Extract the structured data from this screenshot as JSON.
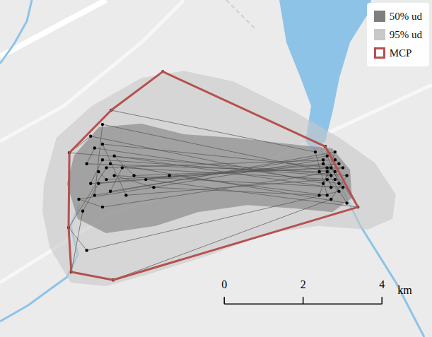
{
  "chart_data": {
    "type": "scatter",
    "xlim": [
      0,
      10.96
    ],
    "ylim": [
      0,
      8.56
    ],
    "tick_labels": false,
    "legend": "top-right",
    "series": [
      {
        "name": "50% ud",
        "type": "area",
        "color": "#7f7f7f",
        "points": [
          [
            1.88,
            4.61
          ],
          [
            2.51,
            5.33
          ],
          [
            3.59,
            5.42
          ],
          [
            4.66,
            5.15
          ],
          [
            5.92,
            5.06
          ],
          [
            7.53,
            4.88
          ],
          [
            8.43,
            4.79
          ],
          [
            8.88,
            4.25
          ],
          [
            8.93,
            3.53
          ],
          [
            8.43,
            3.17
          ],
          [
            7.53,
            3.26
          ],
          [
            6.28,
            3.35
          ],
          [
            5.02,
            3.17
          ],
          [
            3.95,
            2.82
          ],
          [
            2.69,
            2.64
          ],
          [
            1.97,
            3.0
          ],
          [
            1.7,
            3.89
          ]
        ]
      },
      {
        "name": "95% ud",
        "type": "area",
        "color": "#c8c8c8",
        "points": [
          [
            1.11,
            3.89
          ],
          [
            1.43,
            5.06
          ],
          [
            2.33,
            5.87
          ],
          [
            3.59,
            6.58
          ],
          [
            4.66,
            6.76
          ],
          [
            5.92,
            6.49
          ],
          [
            7.53,
            5.69
          ],
          [
            8.61,
            5.06
          ],
          [
            9.51,
            4.43
          ],
          [
            10.04,
            3.62
          ],
          [
            9.96,
            3.0
          ],
          [
            9.33,
            2.73
          ],
          [
            8.07,
            2.82
          ],
          [
            6.82,
            2.64
          ],
          [
            5.38,
            2.1
          ],
          [
            3.95,
            1.65
          ],
          [
            2.69,
            1.29
          ],
          [
            1.79,
            1.38
          ],
          [
            1.26,
            2.28
          ],
          [
            1.08,
            3.17
          ]
        ]
      },
      {
        "name": "MCP",
        "type": "line",
        "color": "#b5514f",
        "points": [
          [
            4.13,
            6.74
          ],
          [
            8.25,
            4.84
          ],
          [
            9.08,
            3.3
          ],
          [
            2.87,
            1.45
          ],
          [
            1.81,
            1.65
          ],
          [
            1.74,
            2.78
          ],
          [
            1.76,
            4.68
          ],
          [
            2.82,
            5.76
          ]
        ]
      },
      {
        "type": "scatter",
        "color": "#000000",
        "marker": "circle",
        "line_style": "solid",
        "points": [
          [
            2.5,
            4.2
          ],
          [
            2.7,
            4.0
          ],
          [
            8.3,
            4.3
          ],
          [
            8.4,
            4.1
          ],
          [
            2.6,
            4.5
          ],
          [
            2.3,
            3.9
          ],
          [
            8.2,
            4.4
          ],
          [
            8.5,
            4.0
          ],
          [
            3.1,
            4.3
          ],
          [
            2.8,
            3.7
          ],
          [
            8.3,
            4.6
          ],
          [
            8.6,
            3.9
          ],
          [
            2.4,
            4.8
          ],
          [
            2.2,
            4.4
          ],
          [
            8.1,
            4.2
          ],
          [
            8.7,
            4.3
          ],
          [
            3.4,
            4.1
          ],
          [
            2.9,
            4.6
          ],
          [
            8.4,
            3.8
          ],
          [
            8.2,
            4.5
          ],
          [
            2.0,
            3.5
          ],
          [
            2.6,
            3.3
          ],
          [
            8.5,
            4.2
          ],
          [
            9.08,
            3.3
          ],
          [
            3.7,
            4.0
          ],
          [
            4.3,
            4.1
          ],
          [
            8.3,
            3.6
          ],
          [
            8.0,
            4.7
          ],
          [
            2.82,
            5.76
          ],
          [
            4.13,
            6.74
          ],
          [
            8.25,
            4.84
          ],
          [
            8.6,
            4.4
          ],
          [
            2.5,
            3.9
          ],
          [
            2.1,
            3.2
          ],
          [
            1.81,
            1.65
          ],
          [
            2.87,
            1.45
          ],
          [
            8.4,
            3.5
          ],
          [
            8.8,
            4.1
          ],
          [
            1.76,
            4.68
          ],
          [
            2.3,
            5.1
          ],
          [
            8.2,
            3.9
          ],
          [
            8.5,
            4.5
          ],
          [
            2.7,
            4.3
          ],
          [
            1.74,
            2.78
          ],
          [
            2.2,
            2.2
          ],
          [
            8.6,
            3.7
          ],
          [
            8.3,
            4.0
          ],
          [
            3.2,
            3.6
          ],
          [
            2.6,
            4.9
          ],
          [
            8.4,
            4.3
          ],
          [
            8.7,
            3.8
          ],
          [
            2.9,
            4.1
          ],
          [
            3.9,
            3.8
          ],
          [
            8.1,
            3.6
          ],
          [
            8.5,
            4.7
          ],
          [
            2.4,
            3.6
          ],
          [
            2.6,
            5.4
          ],
          [
            8.3,
            4.2
          ],
          [
            8.8,
            3.4
          ],
          [
            2.8,
            4.4
          ]
        ]
      }
    ],
    "scale_bar": {
      "ticks": [
        0,
        2,
        4
      ],
      "unit": "km"
    }
  }
}
